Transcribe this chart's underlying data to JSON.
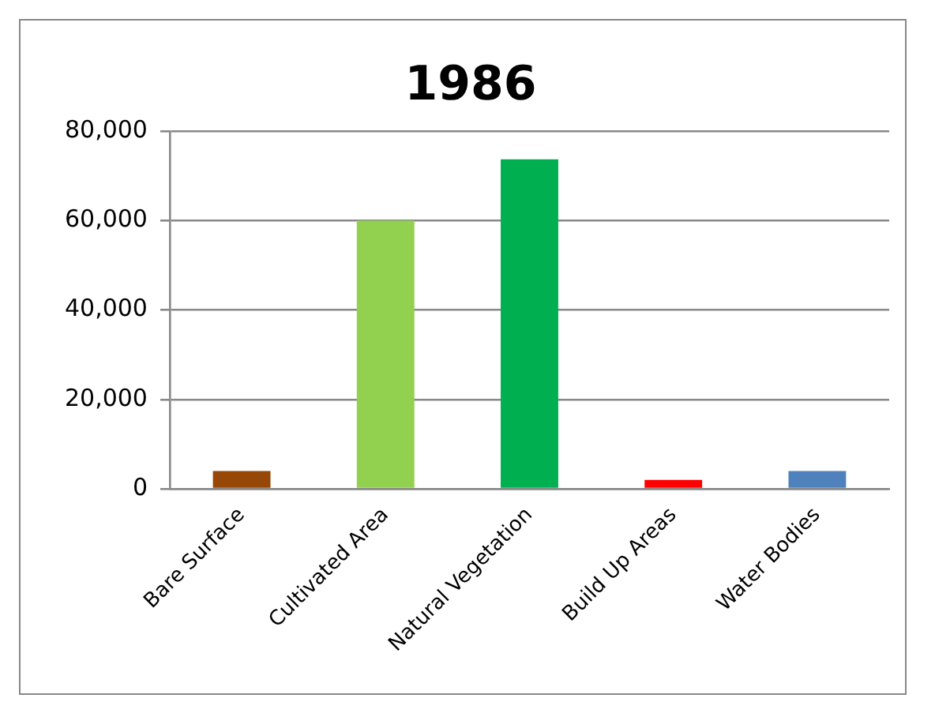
{
  "chart_data": {
    "type": "bar",
    "title": "1986",
    "categories": [
      "Bare Surface",
      "Cultivated Area",
      "Natural Vegetation",
      "Build Up Areas",
      "Water Bodies"
    ],
    "values": [
      4000,
      60000,
      73700,
      2000,
      4000
    ],
    "colors": [
      "#974706",
      "#92d050",
      "#00b050",
      "#ff0000",
      "#4f81bd"
    ],
    "ylim": [
      0,
      80000
    ],
    "yticks": [
      {
        "value": 0,
        "label": "0"
      },
      {
        "value": 20000,
        "label": "20,000"
      },
      {
        "value": 40000,
        "label": "40,000"
      },
      {
        "value": 60000,
        "label": "60,000"
      },
      {
        "value": 80000,
        "label": "80,000"
      }
    ],
    "grid": "y",
    "legend": false
  }
}
